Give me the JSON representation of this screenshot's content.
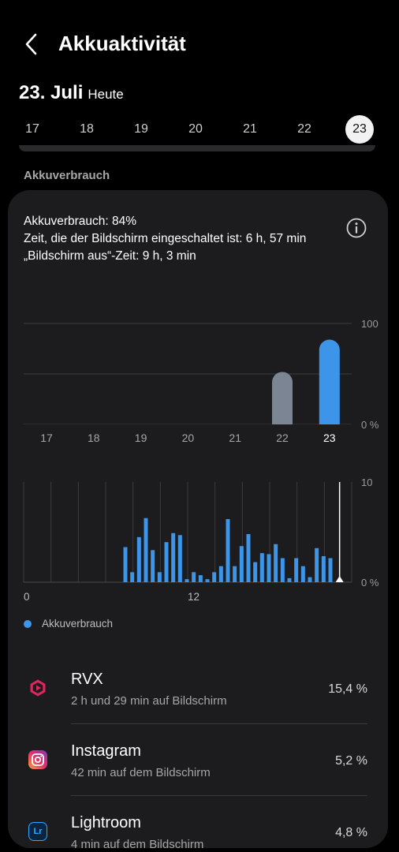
{
  "header": {
    "title": "Akkuaktivität",
    "back_icon": "chevron-left-icon"
  },
  "date": {
    "main": "23. Juli",
    "sub": "Heute"
  },
  "days": [
    {
      "label": "17",
      "selected": false
    },
    {
      "label": "18",
      "selected": false
    },
    {
      "label": "19",
      "selected": false
    },
    {
      "label": "20",
      "selected": false
    },
    {
      "label": "21",
      "selected": false
    },
    {
      "label": "22",
      "selected": false
    },
    {
      "label": "23",
      "selected": true
    }
  ],
  "section_label": "Akkuverbrauch",
  "summary": {
    "usage": "Akkuverbrauch: 84%",
    "screen_on": "Zeit, die der Bildschirm eingeschaltet ist: 6 h, 57 min",
    "screen_off": "„Bildschirm aus“-Zeit: 9 h, 3 min"
  },
  "colors": {
    "accent": "#3d95ea",
    "past_bar": "#7c8593",
    "card": "#1c1c1e"
  },
  "chart_data": [
    {
      "type": "bar",
      "categories": [
        "17",
        "18",
        "19",
        "20",
        "21",
        "22",
        "23"
      ],
      "values": [
        0,
        0,
        0,
        0,
        0,
        52,
        84
      ],
      "ylim": [
        0,
        100
      ],
      "ytick_labels": [
        "100",
        "0 %"
      ],
      "highlight_category": "23"
    },
    {
      "type": "bar",
      "x_tick_labels": [
        "0",
        "12"
      ],
      "ytick_labels": [
        "10",
        "0 %"
      ],
      "ylim": [
        0,
        10
      ],
      "x_range_hours": [
        0,
        24
      ],
      "bars": [
        {
          "x": 7.5,
          "value": 3.5
        },
        {
          "x": 8.0,
          "value": 1.0
        },
        {
          "x": 8.5,
          "value": 4.5
        },
        {
          "x": 9.0,
          "value": 6.4
        },
        {
          "x": 9.5,
          "value": 3.2
        },
        {
          "x": 10.0,
          "value": 1.0
        },
        {
          "x": 10.5,
          "value": 4.0
        },
        {
          "x": 11.0,
          "value": 4.9
        },
        {
          "x": 11.5,
          "value": 4.7
        },
        {
          "x": 12.0,
          "value": 0.3
        },
        {
          "x": 12.5,
          "value": 1.0
        },
        {
          "x": 13.0,
          "value": 0.7
        },
        {
          "x": 13.5,
          "value": 0.3
        },
        {
          "x": 14.0,
          "value": 1.0
        },
        {
          "x": 14.5,
          "value": 1.6
        },
        {
          "x": 15.0,
          "value": 6.3
        },
        {
          "x": 15.5,
          "value": 1.6
        },
        {
          "x": 16.0,
          "value": 3.6
        },
        {
          "x": 16.5,
          "value": 4.8
        },
        {
          "x": 17.0,
          "value": 2.0
        },
        {
          "x": 17.5,
          "value": 2.9
        },
        {
          "x": 18.0,
          "value": 2.8
        },
        {
          "x": 18.5,
          "value": 3.8
        },
        {
          "x": 19.0,
          "value": 2.4
        },
        {
          "x": 19.5,
          "value": 0.4
        },
        {
          "x": 20.0,
          "value": 2.4
        },
        {
          "x": 20.5,
          "value": 1.6
        },
        {
          "x": 21.0,
          "value": 0.5
        },
        {
          "x": 21.5,
          "value": 3.4
        },
        {
          "x": 22.0,
          "value": 2.6
        },
        {
          "x": 22.5,
          "value": 2.4
        }
      ],
      "current_time_hour": 23.0
    }
  ],
  "legend": {
    "label": "Akkuverbrauch"
  },
  "apps": [
    {
      "name": "RVX",
      "sub": "2 h und 29 min auf Bildschirm",
      "percent": "15,4 %",
      "icon": "rvx-play-icon"
    },
    {
      "name": "Instagram",
      "sub": "42 min auf dem Bildschirm",
      "percent": "5,2 %",
      "icon": "instagram-icon"
    },
    {
      "name": "Lightroom",
      "sub": "4 min auf dem Bildschirm",
      "percent": "4,8 %",
      "icon": "lightroom-icon"
    }
  ]
}
